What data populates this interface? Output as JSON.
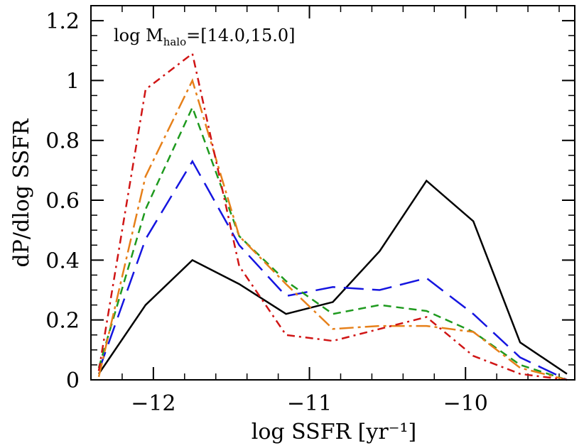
{
  "chart_data": {
    "type": "line",
    "title": "",
    "xlabel": "log SSFR [yr⁻¹]",
    "ylabel": "dP/dlog SSFR",
    "xlim": [
      -12.4,
      -9.3
    ],
    "ylim": [
      0,
      1.25
    ],
    "xticks": [
      -12,
      -11,
      -10
    ],
    "xtick_labels": [
      "−12",
      "−11",
      "−10"
    ],
    "yticks": [
      0,
      0.2,
      0.4,
      0.6,
      0.8,
      1,
      1.2
    ],
    "ytick_labels": [
      "0",
      "0.2",
      "0.4",
      "0.6",
      "0.8",
      "1",
      "1.2"
    ],
    "grid": false,
    "annotation": {
      "prefix": "log M",
      "subscript": "halo",
      "suffix": "=[14.0,15.0]"
    },
    "x": [
      -12.35,
      -12.05,
      -11.75,
      -11.45,
      -11.15,
      -10.85,
      -10.55,
      -10.25,
      -9.95,
      -9.65,
      -9.35
    ],
    "series": [
      {
        "color": "#000000",
        "dash": "solid",
        "values": [
          0.02,
          0.25,
          0.4,
          0.32,
          0.22,
          0.26,
          0.43,
          0.665,
          0.53,
          0.125,
          0.02
        ]
      },
      {
        "color": "#1515e0",
        "dash": "long-dash",
        "values": [
          0.03,
          0.47,
          0.73,
          0.45,
          0.28,
          0.31,
          0.3,
          0.34,
          0.22,
          0.075,
          0.0
        ]
      },
      {
        "color": "#1e9a1e",
        "dash": "short-dash",
        "values": [
          0.04,
          0.57,
          0.91,
          0.48,
          0.33,
          0.22,
          0.25,
          0.23,
          0.16,
          0.05,
          0.0
        ]
      },
      {
        "color": "#e6801a",
        "dash": "long-dash-dot",
        "values": [
          0.01,
          0.68,
          1.0,
          0.48,
          0.32,
          0.17,
          0.18,
          0.18,
          0.16,
          0.04,
          0.0
        ]
      },
      {
        "color": "#d01515",
        "dash": "dash-dot",
        "values": [
          0.03,
          0.97,
          1.09,
          0.38,
          0.15,
          0.13,
          0.17,
          0.21,
          0.08,
          0.02,
          0.0
        ]
      }
    ]
  }
}
